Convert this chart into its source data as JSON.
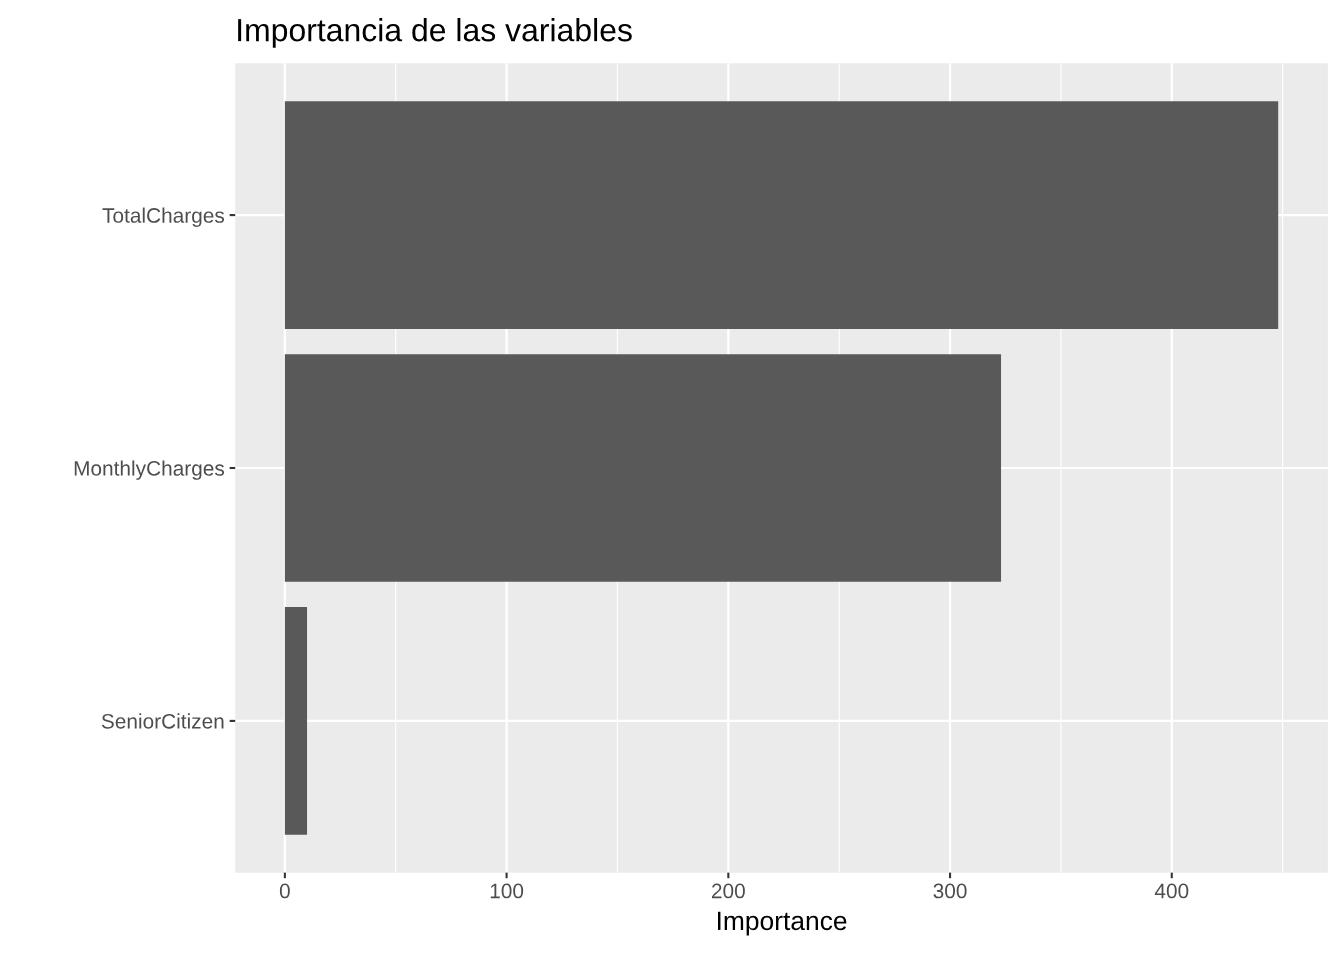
{
  "chart_data": {
    "type": "bar",
    "orientation": "horizontal",
    "title": "Importancia de las variables",
    "xlabel": "Importance",
    "categories": [
      "TotalCharges",
      "MonthlyCharges",
      "SeniorCitizen"
    ],
    "values": [
      448,
      323,
      10
    ],
    "color": "#595959",
    "xlim": [
      -22.4,
      470.4
    ],
    "xticks": [
      0,
      100,
      200,
      300,
      400
    ],
    "grid": true
  }
}
